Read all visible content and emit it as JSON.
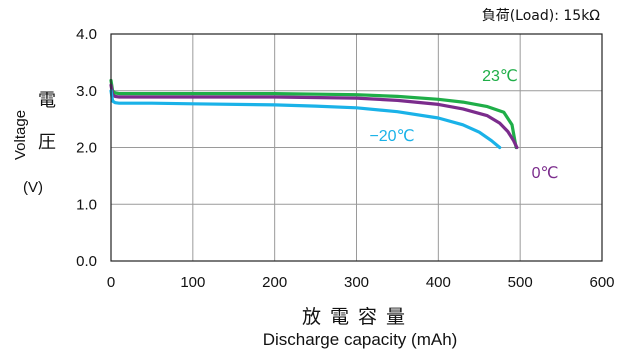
{
  "chart_data": {
    "type": "line",
    "annotation": "負荷(Load): 15kΩ",
    "xlabel_jp": "放電容量",
    "xlabel": "Discharge capacity (mAh)",
    "ylabel": "Voltage",
    "ylabel_jp": "電圧",
    "ylabel_unit": "(V)",
    "xlim": [
      0,
      600
    ],
    "ylim": [
      0.0,
      4.0
    ],
    "xticks": [
      0,
      100,
      200,
      300,
      400,
      500,
      600
    ],
    "yticks": [
      "0.0",
      "1.0",
      "2.0",
      "3.0",
      "4.0"
    ],
    "grid": true,
    "series": [
      {
        "name": "23℃",
        "color": "#1fae48",
        "x": [
          0,
          2,
          5,
          10,
          20,
          50,
          100,
          200,
          300,
          350,
          400,
          430,
          460,
          480,
          490,
          495
        ],
        "y": [
          3.18,
          3.0,
          2.96,
          2.95,
          2.95,
          2.95,
          2.95,
          2.95,
          2.93,
          2.9,
          2.85,
          2.8,
          2.72,
          2.62,
          2.4,
          2.0
        ]
      },
      {
        "name": "0℃",
        "color": "#7b2c8c",
        "x": [
          0,
          2,
          5,
          10,
          20,
          50,
          100,
          200,
          300,
          350,
          400,
          430,
          460,
          475,
          485,
          492,
          496
        ],
        "y": [
          3.1,
          2.93,
          2.9,
          2.89,
          2.89,
          2.89,
          2.89,
          2.89,
          2.87,
          2.83,
          2.76,
          2.68,
          2.56,
          2.43,
          2.28,
          2.12,
          2.0
        ]
      },
      {
        "name": "−20℃",
        "color": "#1ab2e8",
        "x": [
          0,
          2,
          5,
          10,
          20,
          50,
          100,
          200,
          250,
          300,
          350,
          400,
          430,
          450,
          465,
          475
        ],
        "y": [
          3.0,
          2.82,
          2.79,
          2.78,
          2.78,
          2.78,
          2.77,
          2.75,
          2.73,
          2.7,
          2.63,
          2.52,
          2.4,
          2.27,
          2.12,
          2.0
        ]
      }
    ]
  }
}
